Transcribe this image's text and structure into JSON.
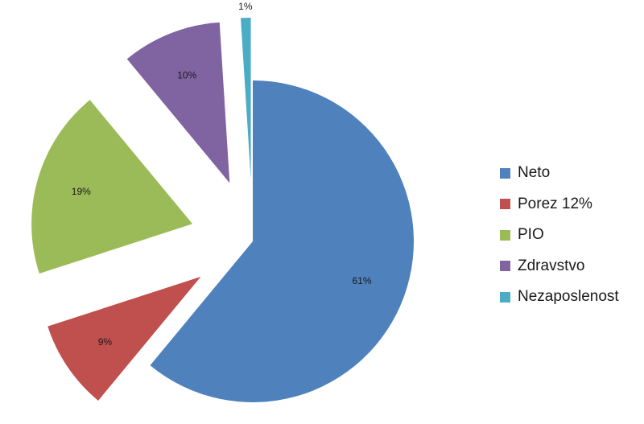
{
  "chart_data": {
    "type": "pie",
    "title": "",
    "categories": [
      "Neto",
      "Porez 12%",
      "PIO",
      "Zdravstvo",
      "Nezaposlenost"
    ],
    "values": [
      61,
      9,
      19,
      10,
      1
    ],
    "labels": [
      "61%",
      "9%",
      "19%",
      "10%",
      "1%"
    ],
    "colors": [
      "#4F81BD",
      "#C0504D",
      "#9BBB59",
      "#8064A2",
      "#4BACC6"
    ],
    "exploded": [
      false,
      true,
      true,
      true,
      true
    ],
    "legend_position": "right",
    "legend": [
      "Neto",
      "Porez 12%",
      "PIO",
      "Zdravstvo",
      "Nezaposlenost"
    ]
  }
}
